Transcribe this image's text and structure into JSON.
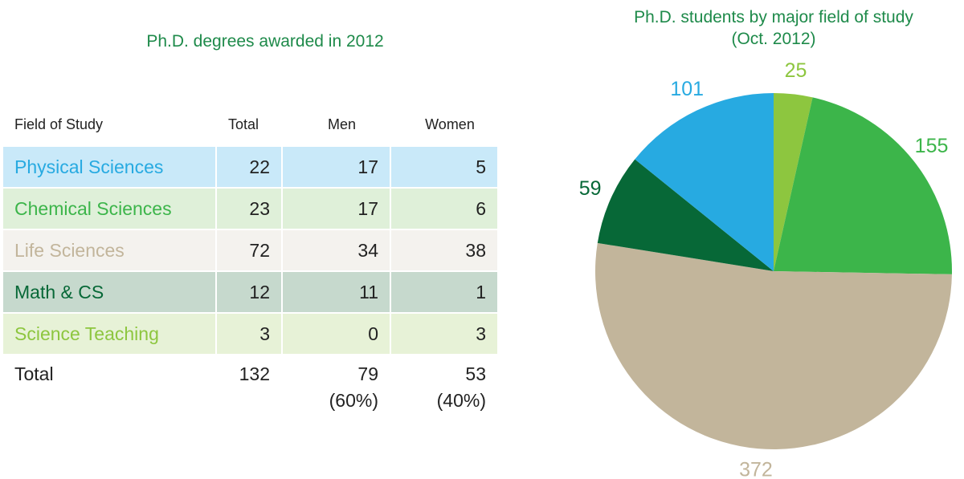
{
  "table": {
    "title": "Ph.D. degrees awarded in 2012",
    "headers": [
      "Field of Study",
      "Total",
      "Men",
      "Women"
    ],
    "rows": [
      [
        "Physical Sciences",
        22,
        17,
        5
      ],
      [
        "Chemical Sciences",
        23,
        17,
        6
      ],
      [
        "Life Sciences",
        72,
        34,
        38
      ],
      [
        "Math & CS",
        12,
        11,
        1
      ],
      [
        "Science Teaching",
        3,
        0,
        3
      ]
    ],
    "row_text_colors": [
      "#27aae1",
      "#3cb54a",
      "#c2b59b",
      "#076837",
      "#8dc63f"
    ],
    "row_bg_colors": [
      "#c9e9f9",
      "#dff0d9",
      "#f4f2ee",
      "#c6d9cd",
      "#e7f2d7"
    ],
    "total": {
      "label": "Total",
      "total": 132,
      "men": 79,
      "men_share": "(60%)",
      "women": 53,
      "women_share": "(40%)"
    }
  },
  "chart_data": {
    "type": "pie",
    "title": "Ph.D. students by major field of study",
    "subtitle": "(Oct. 2012)",
    "values": [
      25,
      155,
      372,
      59,
      101
    ],
    "colors": [
      "#8dc63f",
      "#3cb54a",
      "#c2b59b",
      "#076837",
      "#27aae1"
    ]
  }
}
